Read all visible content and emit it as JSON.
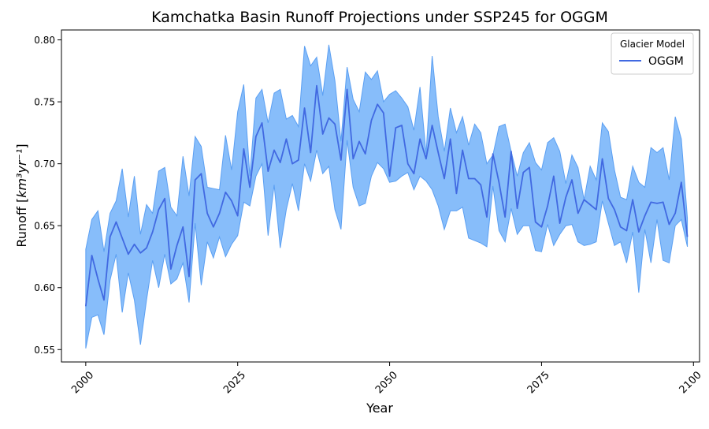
{
  "chart_data": {
    "type": "line",
    "title": "Kamchatka Basin Runoff Projections under SSP245 for OGGM",
    "xlabel": "Year",
    "ylabel_main": "Runoff [",
    "ylabel_unit": "km³yr⁻¹",
    "ylabel_end": "]",
    "xlim": [
      1996,
      2101
    ],
    "ylim": [
      0.54,
      0.808
    ],
    "x_ticks": [
      2000,
      2025,
      2050,
      2075,
      2100
    ],
    "x_tick_labels": [
      "2000",
      "2025",
      "2050",
      "2075",
      "2100"
    ],
    "y_ticks": [
      0.55,
      0.6,
      0.65,
      0.7,
      0.75,
      0.8
    ],
    "y_tick_labels": [
      "0.55",
      "0.60",
      "0.65",
      "0.70",
      "0.75",
      "0.80"
    ],
    "grid": false,
    "legend": {
      "title": "Glacier Model",
      "placement": "top-right"
    },
    "colors": {
      "line": "#4169e1",
      "band": "#87bdfa",
      "band_edge": "#5b9ff2"
    },
    "series": [
      {
        "name": "OGGM",
        "x_start": 2000,
        "x_step": 1,
        "values": [
          0.585,
          0.626,
          0.607,
          0.59,
          0.641,
          0.653,
          0.64,
          0.627,
          0.635,
          0.628,
          0.632,
          0.645,
          0.663,
          0.672,
          0.615,
          0.634,
          0.649,
          0.609,
          0.687,
          0.692,
          0.66,
          0.649,
          0.66,
          0.677,
          0.67,
          0.658,
          0.712,
          0.681,
          0.722,
          0.733,
          0.694,
          0.711,
          0.701,
          0.72,
          0.7,
          0.703,
          0.745,
          0.709,
          0.763,
          0.724,
          0.737,
          0.732,
          0.703,
          0.76,
          0.704,
          0.718,
          0.708,
          0.735,
          0.748,
          0.741,
          0.69,
          0.729,
          0.731,
          0.7,
          0.692,
          0.72,
          0.704,
          0.731,
          0.709,
          0.688,
          0.72,
          0.676,
          0.711,
          0.688,
          0.688,
          0.683,
          0.657,
          0.708,
          0.685,
          0.657,
          0.71,
          0.664,
          0.693,
          0.697,
          0.653,
          0.649,
          0.666,
          0.69,
          0.652,
          0.673,
          0.687,
          0.66,
          0.671,
          0.667,
          0.663,
          0.704,
          0.672,
          0.663,
          0.649,
          0.646,
          0.671,
          0.645,
          0.658,
          0.669,
          0.668,
          0.669,
          0.651,
          0.66,
          0.685,
          0.641
        ],
        "lower": [
          0.551,
          0.576,
          0.578,
          0.562,
          0.606,
          0.627,
          0.58,
          0.612,
          0.59,
          0.554,
          0.59,
          0.622,
          0.6,
          0.627,
          0.603,
          0.607,
          0.62,
          0.588,
          0.652,
          0.602,
          0.637,
          0.624,
          0.641,
          0.625,
          0.635,
          0.642,
          0.669,
          0.666,
          0.69,
          0.7,
          0.642,
          0.683,
          0.632,
          0.663,
          0.684,
          0.662,
          0.7,
          0.686,
          0.711,
          0.692,
          0.698,
          0.663,
          0.647,
          0.719,
          0.681,
          0.666,
          0.668,
          0.69,
          0.701,
          0.696,
          0.685,
          0.686,
          0.69,
          0.693,
          0.679,
          0.69,
          0.686,
          0.679,
          0.666,
          0.647,
          0.662,
          0.662,
          0.665,
          0.64,
          0.638,
          0.636,
          0.633,
          0.682,
          0.646,
          0.637,
          0.664,
          0.643,
          0.65,
          0.65,
          0.63,
          0.629,
          0.651,
          0.634,
          0.643,
          0.65,
          0.651,
          0.637,
          0.634,
          0.635,
          0.637,
          0.67,
          0.652,
          0.634,
          0.637,
          0.62,
          0.645,
          0.596,
          0.647,
          0.62,
          0.655,
          0.622,
          0.62,
          0.65,
          0.655,
          0.633
        ],
        "upper": [
          0.631,
          0.655,
          0.662,
          0.629,
          0.66,
          0.67,
          0.696,
          0.657,
          0.69,
          0.643,
          0.667,
          0.66,
          0.694,
          0.697,
          0.665,
          0.658,
          0.706,
          0.674,
          0.722,
          0.714,
          0.681,
          0.68,
          0.679,
          0.723,
          0.695,
          0.742,
          0.764,
          0.69,
          0.753,
          0.76,
          0.733,
          0.757,
          0.76,
          0.736,
          0.739,
          0.73,
          0.795,
          0.779,
          0.786,
          0.755,
          0.796,
          0.767,
          0.718,
          0.778,
          0.752,
          0.742,
          0.774,
          0.768,
          0.775,
          0.75,
          0.756,
          0.759,
          0.753,
          0.746,
          0.727,
          0.762,
          0.708,
          0.787,
          0.738,
          0.71,
          0.745,
          0.725,
          0.738,
          0.715,
          0.732,
          0.725,
          0.7,
          0.707,
          0.73,
          0.732,
          0.71,
          0.69,
          0.709,
          0.717,
          0.701,
          0.695,
          0.717,
          0.721,
          0.71,
          0.684,
          0.707,
          0.697,
          0.671,
          0.698,
          0.687,
          0.733,
          0.726,
          0.695,
          0.673,
          0.671,
          0.698,
          0.685,
          0.681,
          0.713,
          0.709,
          0.713,
          0.687,
          0.738,
          0.72,
          0.656
        ]
      }
    ]
  }
}
